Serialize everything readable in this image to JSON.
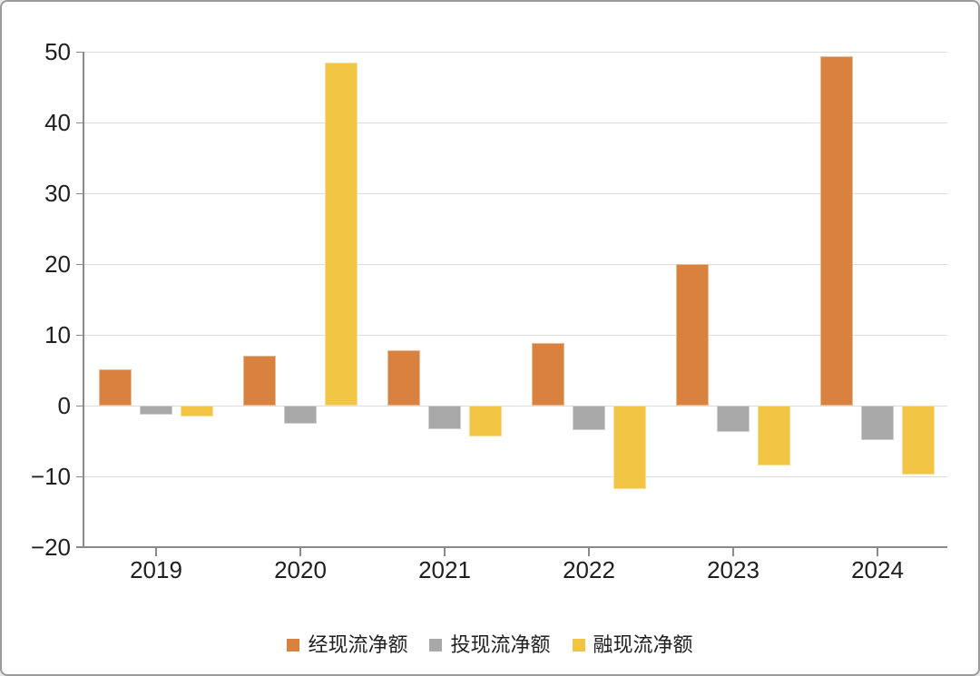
{
  "frame": {
    "background": "#FFFFFF",
    "border_color": "#9B9B9B"
  },
  "chart_data": {
    "type": "bar",
    "title": "",
    "xlabel": "",
    "ylabel": "",
    "categories": [
      "2019",
      "2020",
      "2021",
      "2022",
      "2023",
      "2024"
    ],
    "series": [
      {
        "name": "经现流净额",
        "color": "#D9823F",
        "values": [
          5.1,
          7.0,
          7.8,
          8.9,
          20.0,
          49.4
        ]
      },
      {
        "name": "投现流净额",
        "color": "#A8A8A8",
        "values": [
          -1.3,
          -2.6,
          -3.3,
          -3.4,
          -3.7,
          -4.9
        ]
      },
      {
        "name": "融现流净额",
        "color": "#F2C443",
        "values": [
          -1.6,
          48.5,
          -4.4,
          -11.8,
          -8.4,
          -9.7
        ]
      }
    ],
    "ylim": [
      -20,
      50
    ],
    "yticks": [
      50,
      40,
      30,
      20,
      10,
      0,
      -10,
      -20
    ],
    "ytick_labels": [
      "50",
      "40",
      "30",
      "20",
      "10",
      "0",
      "−10",
      "−20"
    ],
    "grid": true,
    "legend_position": "bottom",
    "axis_color": "#8A8A8A",
    "gridline_color": "#DCDCDC",
    "text_color": "#1F1F1F"
  }
}
